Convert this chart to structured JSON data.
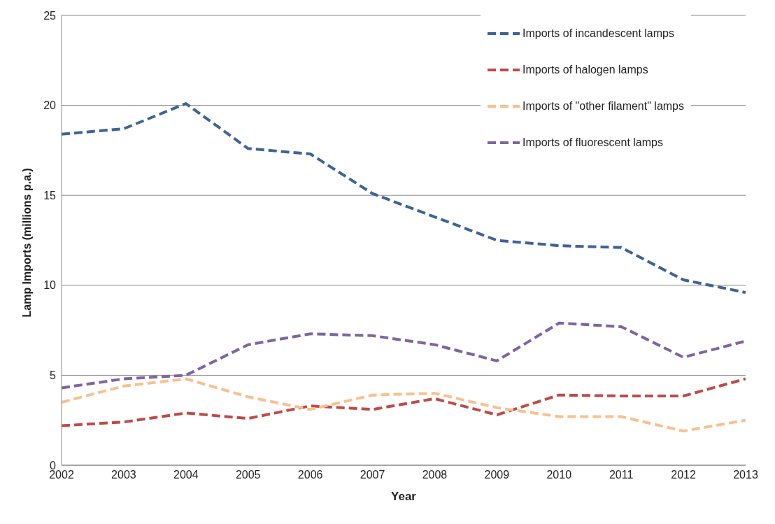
{
  "chart_data": {
    "type": "line",
    "xlabel": "Year",
    "ylabel": "Lamp Imports (millions p.a.)",
    "x": [
      2002,
      2003,
      2004,
      2005,
      2006,
      2007,
      2008,
      2009,
      2010,
      2011,
      2012,
      2013
    ],
    "series": [
      {
        "name": "Imports of incandescent lamps",
        "color": "#3c6499",
        "values": [
          18.4,
          18.7,
          20.1,
          17.6,
          17.3,
          15.1,
          13.8,
          12.5,
          12.2,
          12.1,
          10.3,
          9.6
        ]
      },
      {
        "name": "Imports of halogen lamps",
        "color": "#be4b48",
        "values": [
          2.2,
          2.4,
          2.9,
          2.6,
          3.3,
          3.1,
          3.7,
          2.8,
          3.9,
          3.85,
          3.85,
          4.8
        ]
      },
      {
        "name": "Imports of \"other filament\" lamps",
        "color": "#fac08f",
        "values": [
          3.5,
          4.4,
          4.8,
          3.8,
          3.1,
          3.9,
          4.0,
          3.2,
          2.7,
          2.7,
          1.9,
          2.5
        ]
      },
      {
        "name": "Imports of fluorescent lamps",
        "color": "#7f64a2",
        "values": [
          4.3,
          4.8,
          5.0,
          6.7,
          7.3,
          7.2,
          6.7,
          5.8,
          7.9,
          7.7,
          6.0,
          6.9
        ]
      }
    ],
    "xlim": [
      2002,
      2013
    ],
    "xticks": [
      2002,
      2003,
      2004,
      2005,
      2006,
      2007,
      2008,
      2009,
      2010,
      2011,
      2012,
      2013
    ],
    "ylim": [
      0,
      25
    ],
    "yticks": [
      0,
      5,
      10,
      15,
      20,
      25
    ],
    "grid": "y",
    "legend": "top right",
    "marker": "none",
    "line_style": "dashed"
  }
}
